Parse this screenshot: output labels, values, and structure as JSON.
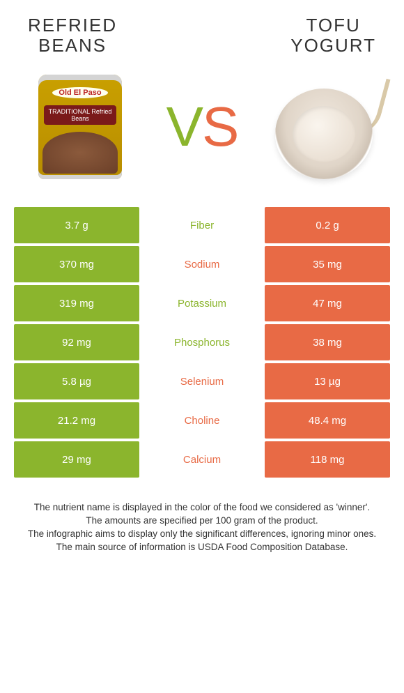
{
  "titles": {
    "left_line1": "REFRIED",
    "left_line2": "BEANS",
    "right_line1": "TOFU",
    "right_line2": "YOGURT"
  },
  "vs": {
    "v": "V",
    "s": "S"
  },
  "colors": {
    "left": "#8bb52d",
    "right": "#e86a45",
    "text": "#333333",
    "background": "#ffffff"
  },
  "rows": [
    {
      "left": "3.7 g",
      "label": "Fiber",
      "right": "0.2 g",
      "winner": "left"
    },
    {
      "left": "370 mg",
      "label": "Sodium",
      "right": "35 mg",
      "winner": "right"
    },
    {
      "left": "319 mg",
      "label": "Potassium",
      "right": "47 mg",
      "winner": "left"
    },
    {
      "left": "92 mg",
      "label": "Phosphorus",
      "right": "38 mg",
      "winner": "left"
    },
    {
      "left": "5.8 µg",
      "label": "Selenium",
      "right": "13 µg",
      "winner": "right"
    },
    {
      "left": "21.2 mg",
      "label": "Choline",
      "right": "48.4 mg",
      "winner": "right"
    },
    {
      "left": "29 mg",
      "label": "Calcium",
      "right": "118 mg",
      "winner": "right"
    }
  ],
  "footer": {
    "l1": "The nutrient name is displayed in the color of the food we considered as 'winner'.",
    "l2": "The amounts are specified per 100 gram of the product.",
    "l3": "The infographic aims to display only the significant differences, ignoring minor ones.",
    "l4": "The main source of information is USDA Food Composition Database."
  }
}
